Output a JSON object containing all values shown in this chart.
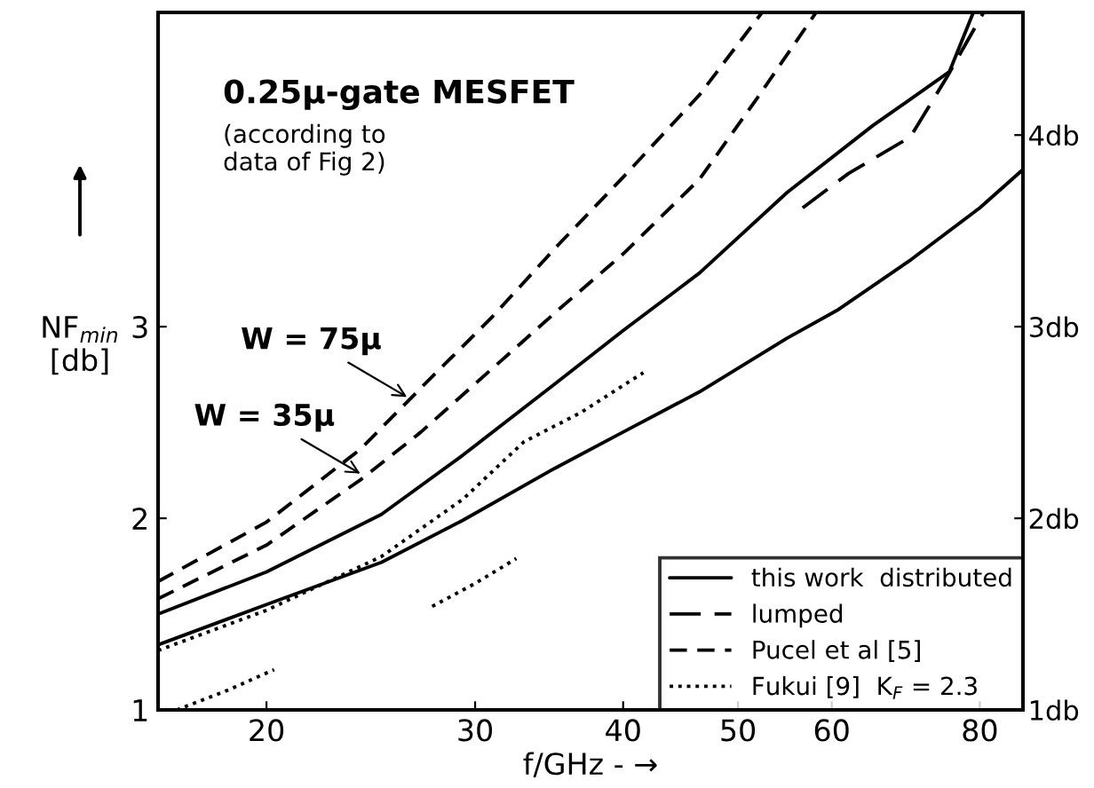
{
  "chart_data": {
    "type": "line",
    "title": "0.25μ-gate MESFET",
    "xlabel": "f/GHz - →",
    "ylabel": "NF$_{min}$\n[db]",
    "annotations": [
      "(according to\ndata of Fig 2)",
      {
        "text": "W = 75μ",
        "x": 26.5,
        "y": 2.62
      },
      {
        "text": "W = 35μ",
        "x": 24.2,
        "y": 2.22
      }
    ],
    "log": "x",
    "xlim": [
      16.2,
      87
    ],
    "xticks": [
      20,
      30,
      40,
      50,
      60,
      80
    ],
    "ylim": [
      1,
      4.64
    ],
    "yticks": [
      1,
      2,
      3
    ],
    "y2lim": [
      1,
      4.64
    ],
    "y2ticks": [
      {
        "value": 1,
        "label": "1db"
      },
      {
        "value": 2,
        "label": "2db"
      },
      {
        "value": 3,
        "label": "3db"
      },
      {
        "value": 4,
        "label": "4db"
      }
    ],
    "grid": false,
    "legend": "bottom right",
    "marker": "none",
    "series": [
      {
        "name": "this work  distributed",
        "color": "#000000",
        "line_style": "solid",
        "x": [
          16.2,
          20,
          25,
          29.3,
          35,
          40,
          46.4,
          55,
          65,
          75.4,
          79
        ],
        "values": [
          1.5,
          1.72,
          2.02,
          2.33,
          2.7,
          2.98,
          3.28,
          3.7,
          4.05,
          4.33,
          4.64
        ]
      },
      {
        "color": "#000000",
        "line_style": "solid",
        "x": [
          16.2,
          20,
          25,
          29.3,
          35,
          40,
          46.4,
          55,
          60.8,
          70,
          80,
          87
        ],
        "values": [
          1.34,
          1.55,
          1.77,
          1.99,
          2.26,
          2.45,
          2.66,
          2.94,
          3.09,
          3.35,
          3.62,
          3.82
        ]
      },
      {
        "name": "lumped",
        "color": "#000000",
        "line_style": "longdash",
        "x": [
          56.7,
          62,
          69.9,
          75,
          80.6
        ],
        "values": [
          3.62,
          3.8,
          3.99,
          4.3,
          4.64
        ]
      },
      {
        "name": "Pucel et al [5]",
        "color": "#000000",
        "line_style": "dashed",
        "x": [
          16.2,
          20,
          24,
          27,
          31,
          35.3,
          40,
          46.4,
          52.4
        ],
        "values": [
          1.67,
          1.98,
          2.36,
          2.68,
          3.05,
          3.43,
          3.78,
          4.21,
          4.64
        ]
      },
      {
        "color": "#000000",
        "line_style": "dashed",
        "x": [
          16.2,
          20,
          24,
          27,
          31,
          35.3,
          40,
          46.4,
          52,
          58.2
        ],
        "values": [
          1.58,
          1.86,
          2.2,
          2.45,
          2.78,
          3.09,
          3.38,
          3.77,
          4.2,
          4.64
        ]
      },
      {
        "name": "Fukui [9]  K$_{F}$ = 2.3",
        "color": "#000000",
        "line_style": "dotted",
        "x": [
          16.2,
          20,
          25,
          29.3,
          33,
          36.8,
          41.6
        ],
        "values": [
          1.31,
          1.52,
          1.8,
          2.1,
          2.4,
          2.55,
          2.76
        ]
      },
      {
        "color": "#000000",
        "line_style": "dotted",
        "x": [
          16.8,
          18.5,
          20.3,
          24,
          27.6,
          30,
          32.5
        ],
        "values": [
          1.0,
          1.1,
          1.21,
          null,
          1.54,
          1.66,
          1.79
        ]
      }
    ]
  }
}
